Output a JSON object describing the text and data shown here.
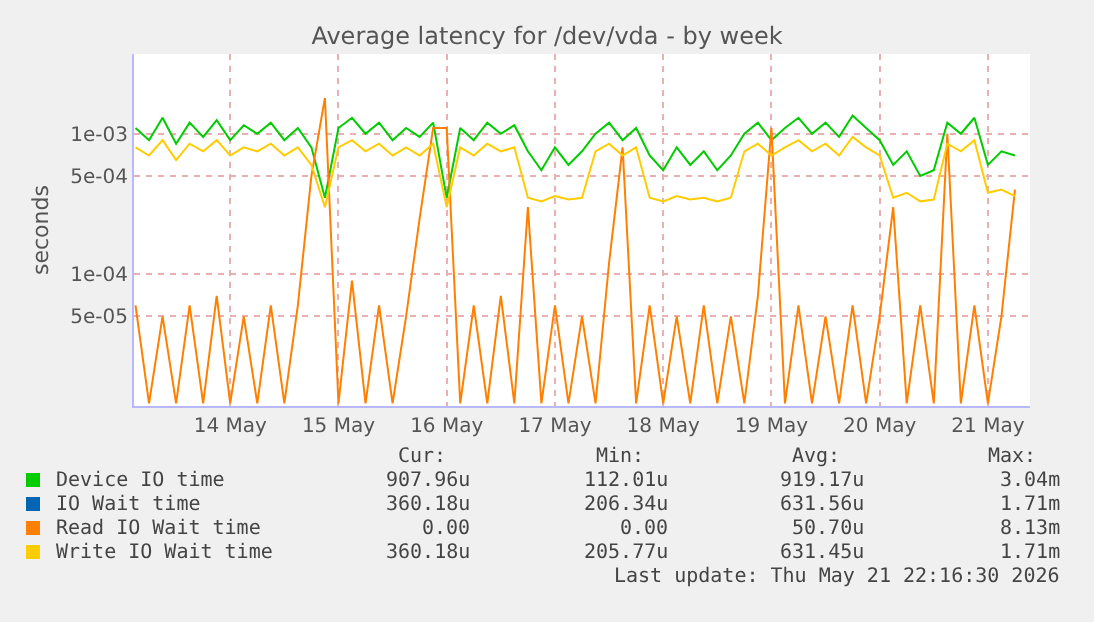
{
  "chart_data": {
    "type": "line",
    "title": "Average latency for /dev/vda - by week",
    "ylabel": "seconds",
    "x": [
      "2026-05-13T15:00",
      "2026-05-13T18:00",
      "2026-05-13T21:00",
      "2026-05-14T00:00",
      "2026-05-14T03:00",
      "2026-05-14T06:00",
      "2026-05-14T09:00",
      "2026-05-14T12:00",
      "2026-05-14T15:00",
      "2026-05-14T18:00",
      "2026-05-14T21:00",
      "2026-05-15T00:00",
      "2026-05-15T03:00",
      "2026-05-15T06:00",
      "2026-05-15T09:00",
      "2026-05-15T12:00",
      "2026-05-15T15:00",
      "2026-05-15T18:00",
      "2026-05-15T21:00",
      "2026-05-16T00:00",
      "2026-05-16T03:00",
      "2026-05-16T06:00",
      "2026-05-16T09:00",
      "2026-05-16T12:00",
      "2026-05-16T15:00",
      "2026-05-16T18:00",
      "2026-05-16T21:00",
      "2026-05-17T00:00",
      "2026-05-17T03:00",
      "2026-05-17T06:00",
      "2026-05-17T09:00",
      "2026-05-17T12:00",
      "2026-05-17T15:00",
      "2026-05-17T18:00",
      "2026-05-17T21:00",
      "2026-05-18T00:00",
      "2026-05-18T03:00",
      "2026-05-18T06:00",
      "2026-05-18T09:00",
      "2026-05-18T12:00",
      "2026-05-18T15:00",
      "2026-05-18T18:00",
      "2026-05-18T21:00",
      "2026-05-19T00:00",
      "2026-05-19T03:00",
      "2026-05-19T06:00",
      "2026-05-19T09:00",
      "2026-05-19T12:00",
      "2026-05-19T15:00",
      "2026-05-19T18:00",
      "2026-05-19T21:00",
      "2026-05-20T00:00",
      "2026-05-20T03:00",
      "2026-05-20T06:00",
      "2026-05-20T09:00",
      "2026-05-20T12:00",
      "2026-05-20T15:00",
      "2026-05-20T18:00",
      "2026-05-20T21:00",
      "2026-05-21T00:00",
      "2026-05-21T03:00",
      "2026-05-21T06:00",
      "2026-05-21T09:00",
      "2026-05-21T12:00",
      "2026-05-21T15:00",
      "2026-05-21T18:00"
    ],
    "series": [
      {
        "name": "Device IO time",
        "color": "#00cc00",
        "values": [
          0.0011,
          0.0009,
          0.0013,
          0.00085,
          0.0012,
          0.00095,
          0.00125,
          0.0009,
          0.00115,
          0.001,
          0.0012,
          0.0009,
          0.0011,
          0.0008,
          0.00035,
          0.0011,
          0.0013,
          0.001,
          0.0012,
          0.0009,
          0.0011,
          0.00095,
          0.0012,
          0.00035,
          0.0011,
          0.0009,
          0.0012,
          0.001,
          0.00115,
          0.00075,
          0.00055,
          0.0008,
          0.0006,
          0.00075,
          0.001,
          0.0012,
          0.0009,
          0.0011,
          0.0007,
          0.00055,
          0.0008,
          0.0006,
          0.00075,
          0.00055,
          0.0007,
          0.001,
          0.0012,
          0.0009,
          0.0011,
          0.0013,
          0.001,
          0.0012,
          0.00095,
          0.00135,
          0.0011,
          0.0009,
          0.0006,
          0.00075,
          0.0005,
          0.00055,
          0.0012,
          0.001,
          0.0013,
          0.0006,
          0.00075,
          0.0007
        ]
      },
      {
        "name": "IO Wait time",
        "color": "#0066b3",
        "values": [
          null,
          null,
          null,
          null,
          null,
          null,
          null,
          null,
          null,
          null,
          null,
          null,
          null,
          null,
          null,
          null,
          null,
          null,
          null,
          null,
          null,
          null,
          null,
          null,
          null,
          null,
          null,
          null,
          null,
          null,
          null,
          null,
          null,
          null,
          null,
          null,
          null,
          null,
          null,
          null,
          null,
          null,
          null,
          null,
          null,
          null,
          null,
          null,
          null,
          null,
          null,
          null,
          null,
          null,
          null,
          null,
          null,
          null,
          null,
          null,
          null,
          null,
          null,
          null,
          null,
          null
        ]
      },
      {
        "name": "Read IO Wait time",
        "color": "#ff8000",
        "values": [
          6e-05,
          1.2e-05,
          5e-05,
          1.2e-05,
          6e-05,
          1.2e-05,
          7e-05,
          1.2e-05,
          5e-05,
          1.2e-05,
          6e-05,
          1.2e-05,
          6e-05,
          0.0005,
          0.0018,
          1.2e-05,
          9e-05,
          1.2e-05,
          6e-05,
          1.2e-05,
          5e-05,
          0.00025,
          0.0011,
          0.0011,
          1.2e-05,
          6e-05,
          1.2e-05,
          7e-05,
          1.2e-05,
          0.0003,
          1.2e-05,
          6e-05,
          1.2e-05,
          5e-05,
          1.2e-05,
          0.00012,
          0.0008,
          1.2e-05,
          6e-05,
          1.2e-05,
          5e-05,
          1.2e-05,
          6e-05,
          1.2e-05,
          5e-05,
          1.2e-05,
          7e-05,
          0.0011,
          1.2e-05,
          6e-05,
          1.2e-05,
          5e-05,
          1.2e-05,
          6e-05,
          1.2e-05,
          5e-05,
          0.0003,
          1.2e-05,
          6e-05,
          1.2e-05,
          0.001,
          1.2e-05,
          6e-05,
          1.2e-05,
          5e-05,
          0.0004
        ]
      },
      {
        "name": "Write IO Wait time",
        "color": "#ffcc00",
        "values": [
          0.0008,
          0.0007,
          0.0009,
          0.00065,
          0.00085,
          0.00075,
          0.0009,
          0.0007,
          0.0008,
          0.00075,
          0.00085,
          0.0007,
          0.0008,
          0.0006,
          0.0003,
          0.0008,
          0.0009,
          0.00075,
          0.00085,
          0.0007,
          0.0008,
          0.0007,
          0.00085,
          0.0003,
          0.0008,
          0.0007,
          0.00085,
          0.00075,
          0.0008,
          0.00035,
          0.00033,
          0.00036,
          0.00034,
          0.00035,
          0.00075,
          0.00085,
          0.0007,
          0.0008,
          0.00035,
          0.00033,
          0.00036,
          0.00034,
          0.00035,
          0.00033,
          0.00035,
          0.00075,
          0.00085,
          0.0007,
          0.0008,
          0.0009,
          0.00075,
          0.00085,
          0.0007,
          0.00095,
          0.0008,
          0.0007,
          0.00035,
          0.00038,
          0.00033,
          0.00034,
          0.00085,
          0.00075,
          0.0009,
          0.00038,
          0.0004,
          0.00036
        ]
      }
    ],
    "log": true,
    "grid": true,
    "legend": "bottom",
    "line_style": "solid",
    "marker": "none",
    "xlim": [
      "2026-05-13T14:40",
      "2026-05-21T21:20"
    ],
    "xticks": [
      {
        "value": "2026-05-14T12:00",
        "label": "14 May"
      },
      {
        "value": "2026-05-15T12:00",
        "label": "15 May"
      },
      {
        "value": "2026-05-16T12:00",
        "label": "16 May"
      },
      {
        "value": "2026-05-17T12:00",
        "label": "17 May"
      },
      {
        "value": "2026-05-18T12:00",
        "label": "18 May"
      },
      {
        "value": "2026-05-19T12:00",
        "label": "19 May"
      },
      {
        "value": "2026-05-20T12:00",
        "label": "20 May"
      },
      {
        "value": "2026-05-21T12:00",
        "label": "21 May"
      }
    ],
    "ylim": [
      1.15e-05,
      0.0037
    ],
    "yticks": [
      {
        "value": 5e-05,
        "label": "5e-05"
      },
      {
        "value": 0.0001,
        "label": "1e-04"
      },
      {
        "value": 0.0005,
        "label": "5e-04"
      },
      {
        "value": 0.001,
        "label": "1e-03"
      }
    ],
    "annotations": [
      "Cur:",
      "Min:",
      "Avg:",
      "Max:",
      "907.96u",
      "112.01u",
      "919.17u",
      "3.04m",
      "360.18u",
      "206.34u",
      "631.56u",
      "1.71m",
      "0.00",
      "0.00",
      "50.70u",
      "8.13m",
      "360.18u",
      "205.77u",
      "631.45u",
      "1.71m",
      "Last update: Thu May 21 22:16:30 2026"
    ]
  }
}
